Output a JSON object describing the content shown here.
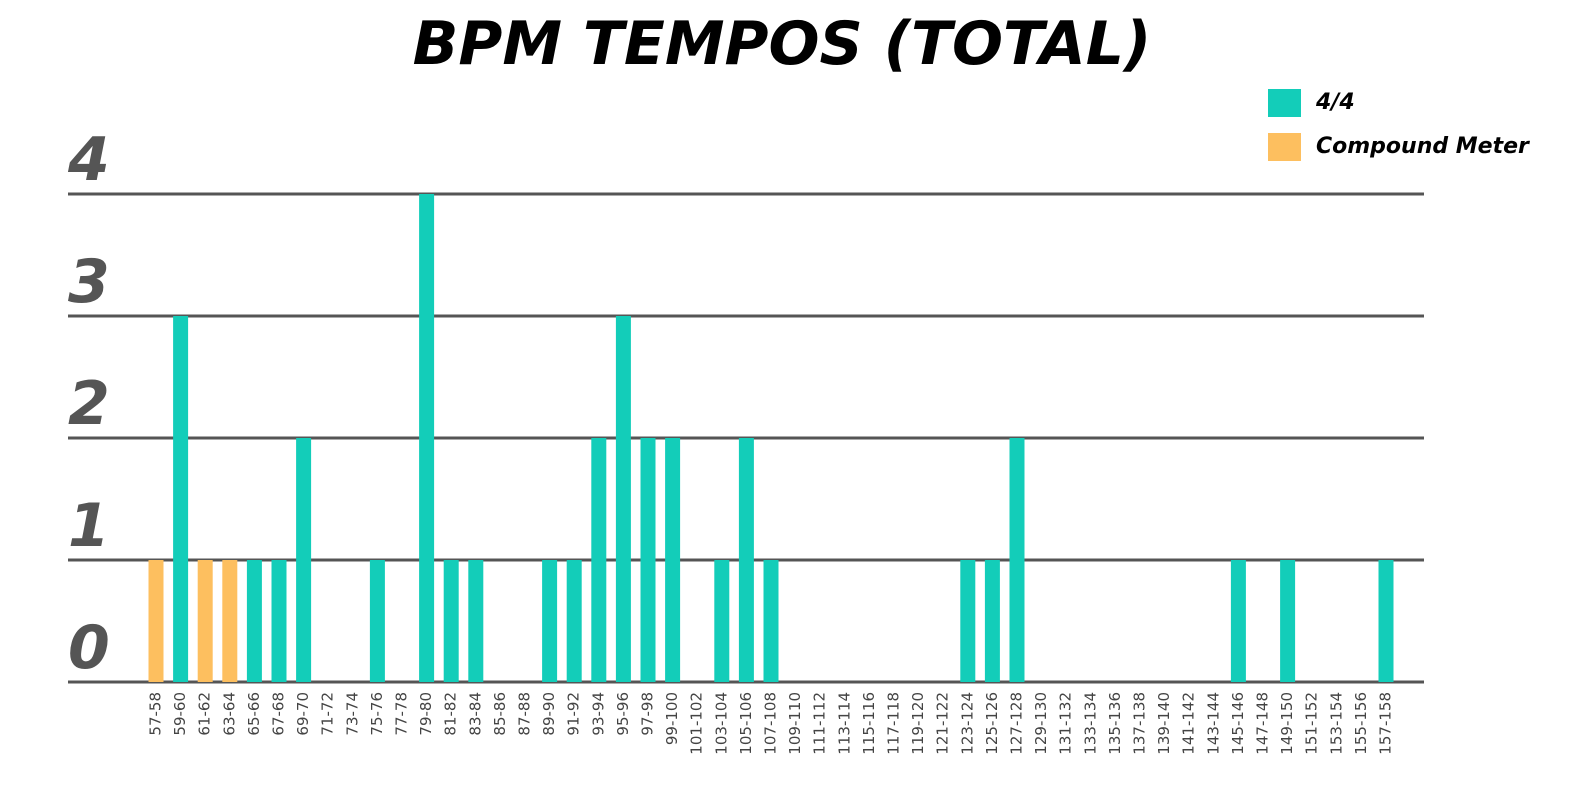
{
  "chart_data": {
    "type": "bar",
    "title": "BPM TEMPOS (TOTAL)",
    "categories": [
      "57-58",
      "59-60",
      "61-62",
      "63-64",
      "65-66",
      "67-68",
      "69-70",
      "71-72",
      "73-74",
      "75-76",
      "77-78",
      "79-80",
      "81-82",
      "83-84",
      "85-86",
      "87-88",
      "89-90",
      "91-92",
      "93-94",
      "95-96",
      "97-98",
      "99-100",
      "101-102",
      "103-104",
      "105-106",
      "107-108",
      "109-110",
      "111-112",
      "113-114",
      "115-116",
      "117-118",
      "119-120",
      "121-122",
      "123-124",
      "125-126",
      "127-128",
      "129-130",
      "131-132",
      "133-134",
      "135-136",
      "137-138",
      "139-140",
      "141-142",
      "143-144",
      "145-146",
      "147-148",
      "149-150",
      "151-152",
      "153-154",
      "155-156",
      "157-158"
    ],
    "series": [
      {
        "name": "4/4",
        "color": "#13cdb9",
        "values": [
          0,
          3,
          0,
          0,
          1,
          1,
          2,
          0,
          0,
          1,
          0,
          4,
          1,
          1,
          0,
          0,
          1,
          1,
          2,
          3,
          2,
          2,
          0,
          1,
          2,
          1,
          0,
          0,
          0,
          0,
          0,
          0,
          0,
          1,
          1,
          2,
          0,
          0,
          0,
          0,
          0,
          0,
          0,
          0,
          1,
          0,
          1,
          0,
          0,
          0,
          1
        ]
      },
      {
        "name": "Compound Meter",
        "color": "#fdbf5f",
        "values": [
          1,
          0,
          1,
          1,
          0,
          0,
          0,
          0,
          0,
          0,
          0,
          0,
          0,
          0,
          0,
          0,
          0,
          0,
          0,
          0,
          0,
          0,
          0,
          0,
          0,
          0,
          0,
          0,
          0,
          0,
          0,
          0,
          0,
          0,
          0,
          0,
          0,
          0,
          0,
          0,
          0,
          0,
          0,
          0,
          0,
          0,
          0,
          0,
          0,
          0,
          0
        ]
      }
    ],
    "ylim": [
      0,
      4
    ],
    "yticks": [
      0,
      1,
      2,
      3,
      4
    ],
    "grid": true,
    "legend": "upper right"
  }
}
